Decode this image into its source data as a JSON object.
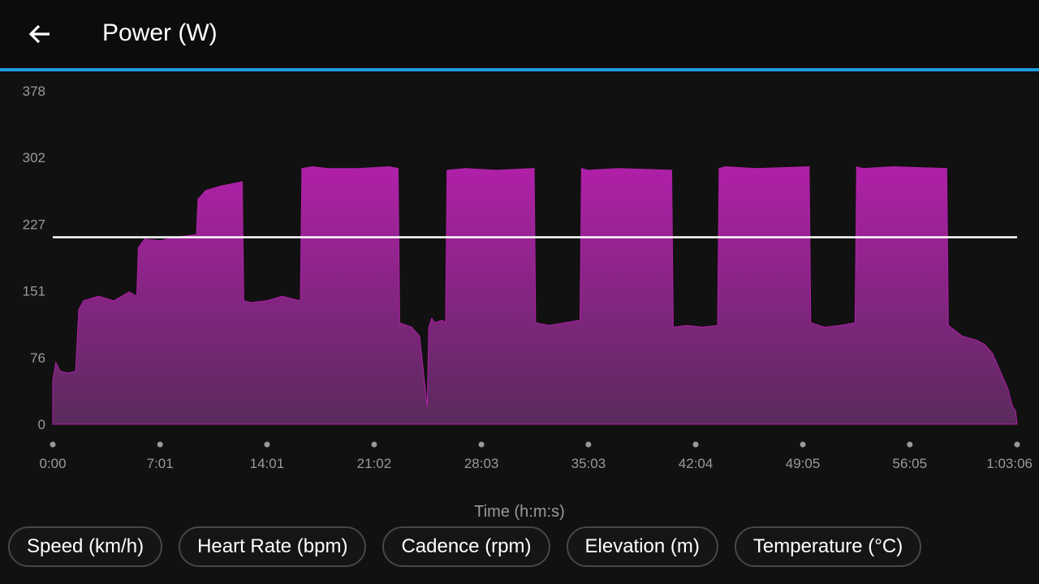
{
  "header": {
    "title": "Power (W)",
    "back_icon": "arrow-left-icon"
  },
  "colors": {
    "accent": "#1e9be0",
    "series_top": "#b020a8",
    "series_bottom": "#5a2a5c",
    "average_line": "#ffffff",
    "background": "#111111"
  },
  "chart_data": {
    "type": "area",
    "title": "Power (W)",
    "xlabel": "Time (h:m:s)",
    "ylabel": "",
    "y_ticks": [
      "0",
      "76",
      "151",
      "227",
      "302",
      "378"
    ],
    "ylim": [
      0,
      378
    ],
    "x_ticks": [
      "0:00",
      "7:01",
      "14:01",
      "21:02",
      "28:03",
      "35:03",
      "42:04",
      "49:05",
      "56:05",
      "1:03:06"
    ],
    "x_tick_minutes": [
      0,
      7.02,
      14.02,
      21.03,
      28.05,
      35.05,
      42.07,
      49.08,
      56.08,
      63.1
    ],
    "xlim_minutes": [
      0,
      63.1
    ],
    "average": 212,
    "grid": false,
    "legend": "none",
    "series": [
      {
        "x_minutes": [
          0,
          0.2,
          0.5,
          1.0,
          1.5,
          1.7,
          2.0,
          3.0,
          4.0,
          5.0,
          5.5,
          5.6,
          6.0,
          7.0,
          8.0,
          9.4,
          9.5,
          10.0,
          11.0,
          12.4,
          12.5,
          13.0,
          14.0,
          15.0,
          16.2,
          16.3,
          17.0,
          18.0,
          20.0,
          22.0,
          22.6,
          22.7,
          23.5,
          24.0,
          24.5,
          24.6,
          24.8,
          25.0,
          25.5,
          25.7,
          25.8,
          27.0,
          29.0,
          31.5,
          31.6,
          32.5,
          33.5,
          34.5,
          34.6,
          35.0,
          37.0,
          40.5,
          40.6,
          41.5,
          42.5,
          43.5,
          43.6,
          44.0,
          46.0,
          49.5,
          49.6,
          50.5,
          51.5,
          52.5,
          52.6,
          53.0,
          55.0,
          58.5,
          58.6,
          59.5,
          60.5,
          61.0,
          61.5,
          62.0,
          62.5,
          62.8,
          63.0,
          63.1
        ],
        "values": [
          50,
          70,
          60,
          58,
          60,
          130,
          140,
          145,
          140,
          150,
          145,
          200,
          210,
          208,
          212,
          215,
          255,
          265,
          270,
          275,
          140,
          138,
          140,
          145,
          140,
          290,
          292,
          290,
          290,
          292,
          290,
          115,
          110,
          100,
          20,
          110,
          120,
          115,
          118,
          115,
          288,
          290,
          288,
          290,
          115,
          112,
          115,
          118,
          290,
          288,
          290,
          288,
          110,
          112,
          110,
          112,
          290,
          292,
          290,
          292,
          115,
          110,
          112,
          115,
          292,
          290,
          292,
          290,
          112,
          100,
          95,
          90,
          80,
          60,
          40,
          20,
          15,
          0
        ]
      }
    ]
  },
  "chips": [
    {
      "label": "Speed (km/h)"
    },
    {
      "label": "Heart Rate (bpm)"
    },
    {
      "label": "Cadence (rpm)"
    },
    {
      "label": "Elevation (m)"
    },
    {
      "label": "Temperature (°C)"
    }
  ]
}
